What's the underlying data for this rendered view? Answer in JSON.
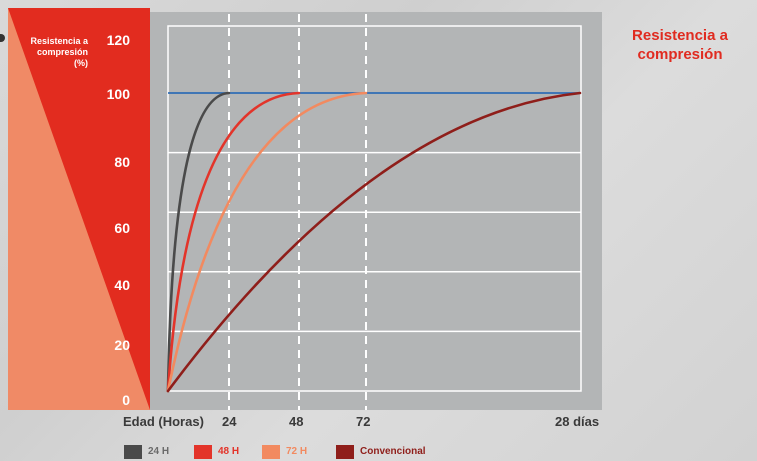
{
  "chart_data": {
    "type": "line",
    "title": "Resistencia a compresión",
    "ylabel_lines": [
      "Resistencia a",
      "compresión",
      "(%)"
    ],
    "xlabel": "Edad (Horas)",
    "ylim": [
      0,
      120
    ],
    "yticks": [
      "0",
      "20",
      "40",
      "60",
      "80",
      "100",
      "120"
    ],
    "ytick_values": [
      0,
      20,
      40,
      60,
      80,
      100,
      120
    ],
    "xticks": [
      "24",
      "48",
      "72",
      "28 días"
    ],
    "xtick_hours": [
      24,
      48,
      72,
      168
    ],
    "reference_line": {
      "y": 100,
      "color": "#2f6db5"
    },
    "grid": true,
    "legend_position": "bottom",
    "series": [
      {
        "name": "24 H",
        "color": "#4a4a4a",
        "reaches_100_at_hours": 24
      },
      {
        "name": "48 H",
        "color": "#e3342a",
        "reaches_100_at_hours": 48
      },
      {
        "name": "72 H",
        "color": "#f28a60",
        "reaches_100_at_hours": 72
      },
      {
        "name": "Convencional",
        "color": "#8f1e1a",
        "reaches_100_at_hours": 168
      }
    ]
  },
  "side_title_lines": [
    "Resistencia a",
    "compresión"
  ],
  "colors": {
    "panel_red": "#e22c1f",
    "panel_salmon": "#f08a66",
    "plot_bg": "#b3b5b6",
    "grid": "#ffffff",
    "accent_text": "#e02b20",
    "legend_24_text": "#6b6b6b",
    "legend_48_text": "#e3342a",
    "legend_72_text": "#f28a60",
    "legend_conv_text": "#8f1e1a"
  }
}
